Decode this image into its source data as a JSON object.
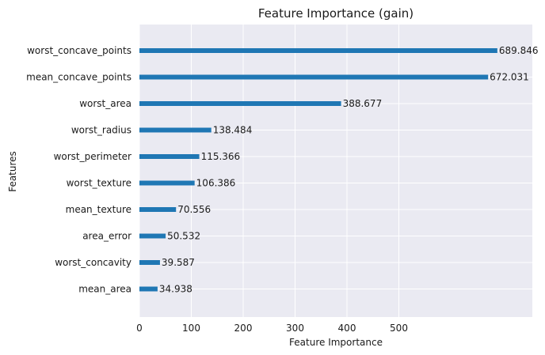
{
  "chart_data": {
    "type": "bar",
    "orientation": "horizontal",
    "title": "Feature Importance (gain)",
    "xlabel": "Feature Importance",
    "ylabel": "Features",
    "xlim": [
      0,
      760
    ],
    "xticks": [
      0,
      100,
      200,
      300,
      400,
      500
    ],
    "grid": true,
    "colors": {
      "bar": "#1f77b4",
      "plot_background": "#eaeaf2",
      "grid": "#ffffff",
      "text": "#1a1a1a"
    },
    "categories": [
      "worst_concave_points",
      "mean_concave_points",
      "worst_area",
      "worst_radius",
      "worst_perimeter",
      "worst_texture",
      "mean_texture",
      "area_error",
      "worst_concavity",
      "mean_area"
    ],
    "values": [
      689.846,
      672.031,
      388.677,
      138.484,
      115.366,
      106.386,
      70.556,
      50.532,
      39.587,
      34.938
    ],
    "data_labels": [
      "689.846",
      "672.031",
      "388.677",
      "138.484",
      "115.366",
      "106.386",
      "70.556",
      "50.532",
      "39.587",
      "34.938"
    ]
  }
}
